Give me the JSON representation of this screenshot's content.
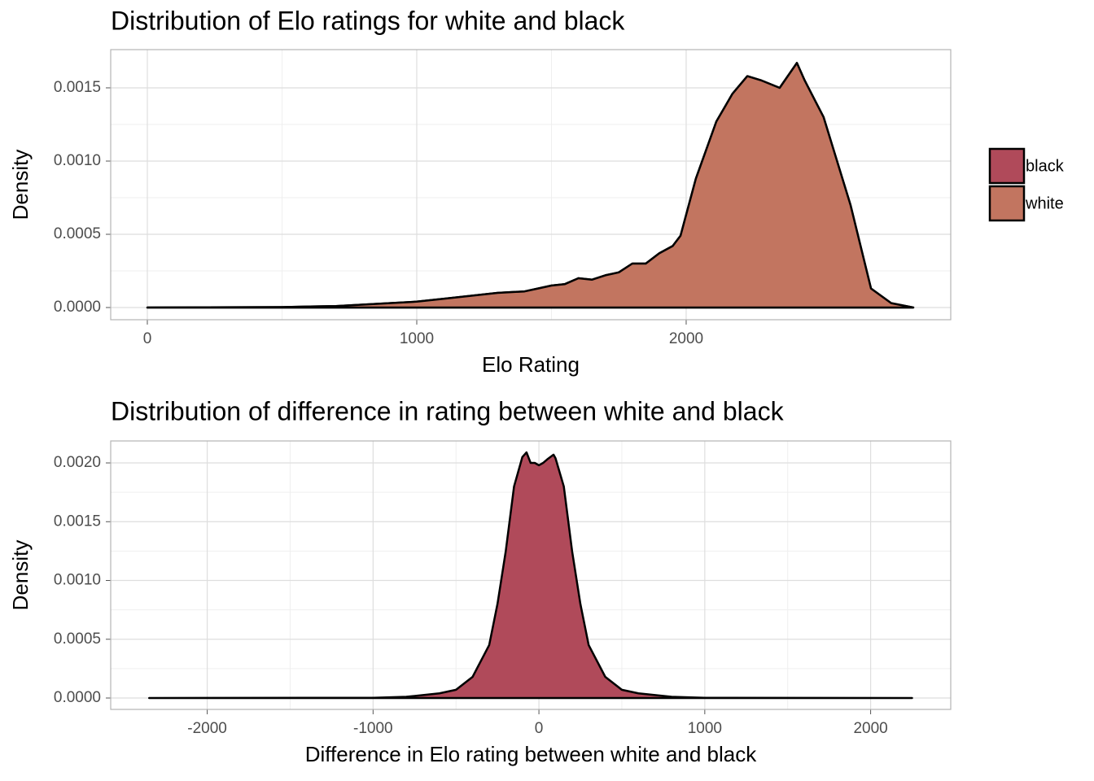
{
  "chart_data": [
    {
      "type": "area",
      "title": "Distribution of Elo ratings for white and black",
      "xlabel": "Elo Rating",
      "ylabel": "Density",
      "x": [
        0,
        500,
        700,
        900,
        1000,
        1100,
        1200,
        1300,
        1400,
        1450,
        1500,
        1550,
        1600,
        1650,
        1700,
        1750,
        1800,
        1850,
        1900,
        1950,
        1979,
        2036,
        2112,
        2172,
        2227,
        2280,
        2347,
        2411,
        2440,
        2510,
        2610,
        2686,
        2761,
        2843
      ],
      "series": [
        {
          "name": "black",
          "color": "#b04a5a",
          "values": [
            0,
            3e-06,
            1e-05,
            3e-05,
            4e-05,
            6e-05,
            8e-05,
            0.0001,
            0.00011,
            0.00013,
            0.00015,
            0.00016,
            0.0002,
            0.00019,
            0.00022,
            0.00024,
            0.0003,
            0.0003,
            0.00037,
            0.00042,
            0.00049,
            0.00088,
            0.00127,
            0.00146,
            0.00158,
            0.00155,
            0.0015,
            0.00167,
            0.00155,
            0.0013,
            0.0007,
            0.00013,
            3e-05,
            0
          ]
        },
        {
          "name": "white",
          "color": "#c27560",
          "values": [
            0,
            3e-06,
            1e-05,
            3e-05,
            4e-05,
            6e-05,
            8e-05,
            0.0001,
            0.00011,
            0.00013,
            0.00015,
            0.00016,
            0.0002,
            0.00019,
            0.00022,
            0.00024,
            0.0003,
            0.0003,
            0.00037,
            0.00042,
            0.00049,
            0.00088,
            0.00127,
            0.00146,
            0.00158,
            0.00155,
            0.0015,
            0.00167,
            0.00155,
            0.0013,
            0.0007,
            0.00013,
            3e-05,
            0
          ]
        }
      ],
      "xlim": [
        -136,
        2982
      ],
      "ylim": [
        -8.33e-05,
        0.001761
      ],
      "xticks": [
        0,
        1000,
        2000
      ],
      "yticks": [
        {
          "value": 0,
          "label": "0.0000"
        },
        {
          "value": 0.0005,
          "label": "0.0005"
        },
        {
          "value": 0.001,
          "label": "0.0010"
        },
        {
          "value": 0.0015,
          "label": "0.0015"
        }
      ],
      "grid": true,
      "legend": "right"
    },
    {
      "type": "area",
      "title": "Distribution of difference in rating between white and black",
      "xlabel": "Difference in Elo rating between white and black",
      "ylabel": "Density",
      "x": [
        -2350,
        -1000,
        -800,
        -600,
        -500,
        -400,
        -300,
        -250,
        -200,
        -150,
        -100,
        -75,
        -50,
        -25,
        0,
        25,
        50,
        88,
        100,
        150,
        200,
        250,
        300,
        400,
        500,
        600,
        800,
        1000,
        2250
      ],
      "values": [
        0,
        2e-06,
        1e-05,
        4e-05,
        7e-05,
        0.00018,
        0.00045,
        0.0008,
        0.00125,
        0.0018,
        0.00205,
        0.00209,
        0.002,
        0.002,
        0.00198,
        0.002,
        0.00203,
        0.00207,
        0.00204,
        0.0018,
        0.00125,
        0.0008,
        0.00045,
        0.00018,
        7e-05,
        4e-05,
        1e-05,
        2e-06,
        0
      ],
      "color": "#b04a5a",
      "xlim": [
        -2582,
        2483
      ],
      "ylim": [
        -9.69e-05,
        0.002187
      ],
      "xticks": [
        -2000,
        -1000,
        0,
        1000,
        2000
      ],
      "yticks": [
        {
          "value": 0,
          "label": "0.0000"
        },
        {
          "value": 0.0005,
          "label": "0.0005"
        },
        {
          "value": 0.001,
          "label": "0.0010"
        },
        {
          "value": 0.0015,
          "label": "0.0015"
        },
        {
          "value": 0.002,
          "label": "0.0020"
        }
      ],
      "grid": true
    }
  ]
}
